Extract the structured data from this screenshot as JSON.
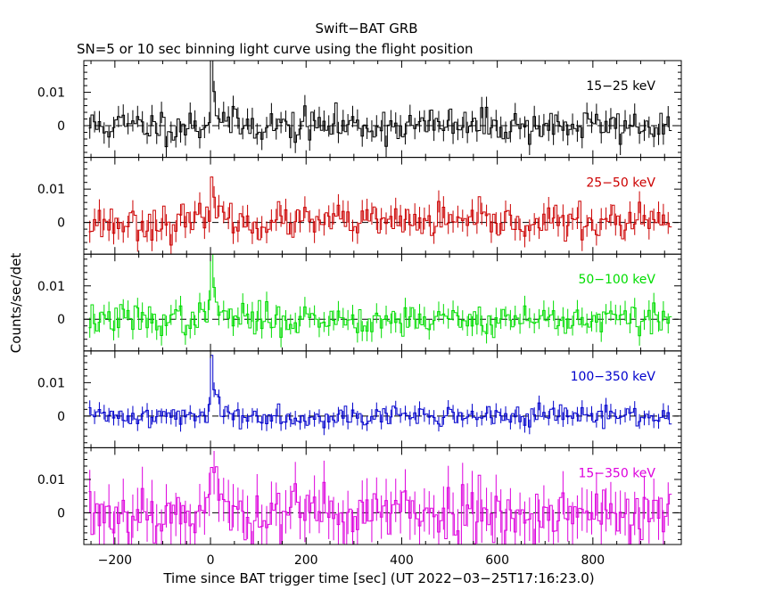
{
  "chart_data": {
    "type": "line",
    "title": "Swift−BAT GRB",
    "subtitle": "SN=5 or 10 sec binning light curve using the flight position",
    "xlabel": "Time since BAT trigger time [sec] (UT 2022−03−25T17:16:23.0)",
    "ylabel": "Counts/sec/det",
    "xlim": [
      -265,
      985
    ],
    "ylim": [
      -0.0095,
      0.0195
    ],
    "x_ticks": [
      -200,
      0,
      200,
      400,
      600,
      800
    ],
    "x_tick_labels": [
      "−200",
      "0",
      "200",
      "400",
      "600",
      "800"
    ],
    "y_ticks": [
      0,
      0.01
    ],
    "y_tick_labels": [
      "0",
      "0.01"
    ],
    "zero_line": "dashed",
    "panels": [
      {
        "name": "15−25 keV",
        "color": "#000000",
        "noise": 0.0025,
        "err": 0.0032,
        "peak": 0.022,
        "seed": 11
      },
      {
        "name": "25−50 keV",
        "color": "#cc0000",
        "noise": 0.0025,
        "err": 0.0033,
        "peak": 0.02,
        "seed": 23
      },
      {
        "name": "50−100 keV",
        "color": "#00dd00",
        "noise": 0.0023,
        "err": 0.003,
        "peak": 0.021,
        "seed": 37
      },
      {
        "name": "100−350 keV",
        "color": "#0000cc",
        "noise": 0.0015,
        "err": 0.0022,
        "peak": 0.019,
        "seed": 41
      },
      {
        "name": "15−350 keV",
        "color": "#dd00dd",
        "noise": 0.0045,
        "err": 0.0065,
        "peak": 0.02,
        "seed": 53
      }
    ]
  }
}
